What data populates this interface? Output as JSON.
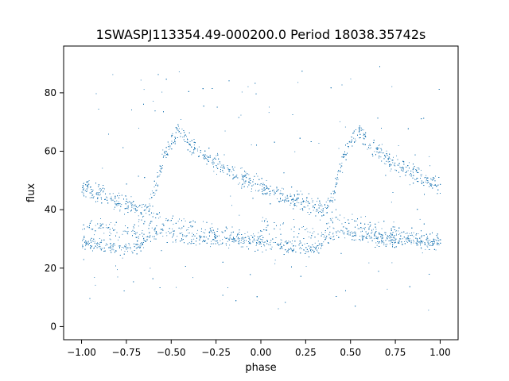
{
  "chart_data": {
    "type": "scatter",
    "title": "1SWASPJ113354.49-000200.0 Period 18038.35742s",
    "xlabel": "phase",
    "ylabel": "flux",
    "xlim": [
      -1.1,
      1.1
    ],
    "ylim": [
      -4.5,
      96
    ],
    "x_ticks": [
      -1.0,
      -0.75,
      -0.5,
      -0.25,
      0.0,
      0.25,
      0.5,
      0.75,
      1.0
    ],
    "x_tick_labels": [
      "−1.00",
      "−0.75",
      "−0.50",
      "−0.25",
      "0.00",
      "0.25",
      "0.50",
      "0.75",
      "1.00"
    ],
    "y_ticks": [
      0,
      20,
      40,
      60,
      80
    ],
    "y_tick_labels": [
      "0",
      "20",
      "40",
      "60",
      "80"
    ],
    "grid": false,
    "legend": "none",
    "marker_color": "#1f77b4",
    "series": [
      {
        "description_period": 1.0,
        "x_range": [
          -1.0,
          1.0
        ],
        "profile_phase": [
          0.0,
          0.1,
          0.2,
          0.3,
          0.35,
          0.4,
          0.45,
          0.5,
          0.55,
          0.6,
          0.7,
          0.8,
          0.9,
          1.0
        ],
        "upper_branch_flux": [
          48,
          45.5,
          43,
          41,
          39.5,
          45,
          56,
          64,
          67,
          63,
          58,
          54,
          51,
          48
        ],
        "lower_branch_flux": [
          29,
          28,
          27,
          27,
          29,
          32,
          33,
          32,
          31,
          31,
          30,
          30,
          29,
          29
        ],
        "secondary_branch_flux": [
          35,
          34,
          33,
          32,
          31,
          38,
          37,
          36,
          35,
          34,
          33,
          32,
          31,
          30
        ]
      }
    ]
  }
}
